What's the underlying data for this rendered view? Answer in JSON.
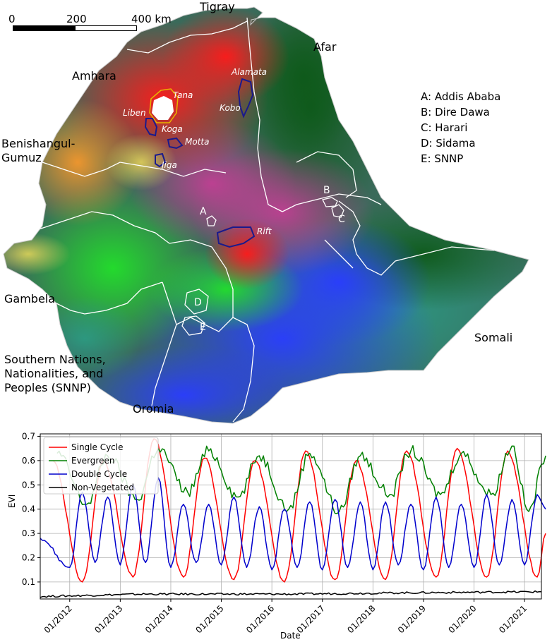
{
  "map": {
    "scale_bar": {
      "labels": [
        "0",
        "200",
        "400 km"
      ]
    },
    "regions": {
      "tigray": "Tigray",
      "afar": "Afar",
      "amhara": "Amhara",
      "benishangul": [
        "Benishangul-",
        "Gumuz"
      ],
      "gambela": "Gambela",
      "snnp": [
        "Southern Nations,",
        "Nationalities, and",
        "Peoples (SNNP)"
      ],
      "oromia": "Oromia",
      "somali": "Somali"
    },
    "letters": {
      "a": "A",
      "b": "B",
      "c": "C",
      "d": "D",
      "e": "E"
    },
    "sites": {
      "alamata": "Alamata",
      "kobo": "Kobo",
      "tana": "Tana",
      "liben": "Liben",
      "koga": "Koga",
      "motta": "Motta",
      "jiga": "Jiga",
      "rift": "Rift"
    },
    "key": [
      "A: Addis Ababa",
      "B: Dire Dawa",
      "C: Harari",
      "D: Sidama",
      "E: SNNP"
    ],
    "colors": {
      "boundary": "#ffffff",
      "site_outline": "#1a1a8c",
      "lake": "#ffffff",
      "tana_outline": "#e8b400"
    }
  },
  "chart_data": {
    "type": "line",
    "xlabel": "Date",
    "ylabel": "EVI",
    "ylim": [
      0.03,
      0.71
    ],
    "x_start": "2011-06",
    "x_end": "2021-05",
    "x_ticks": [
      "01/2012",
      "01/2013",
      "01/2014",
      "01/2015",
      "01/2016",
      "01/2017",
      "01/2018",
      "01/2019",
      "01/2020",
      "01/2021"
    ],
    "y_ticks": [
      "0.1",
      "0.2",
      "0.3",
      "0.4",
      "0.5",
      "0.6",
      "0.7"
    ],
    "grid": true,
    "legend_position": "top-left",
    "series": [
      {
        "name": "Single Cycle",
        "color": "#ff0000",
        "peaks": [
          [
            "2011-09",
            0.6
          ],
          [
            "2012-09",
            0.6
          ],
          [
            "2013-09",
            0.69
          ],
          [
            "2014-09",
            0.61
          ],
          [
            "2015-09",
            0.6
          ],
          [
            "2016-09",
            0.64
          ],
          [
            "2017-09",
            0.6
          ],
          [
            "2018-09",
            0.64
          ],
          [
            "2019-09",
            0.65
          ],
          [
            "2020-09",
            0.64
          ]
        ],
        "troughs": [
          [
            "2012-04",
            0.1
          ],
          [
            "2013-04",
            0.12
          ],
          [
            "2014-04",
            0.12
          ],
          [
            "2015-04",
            0.11
          ],
          [
            "2016-04",
            0.1
          ],
          [
            "2017-04",
            0.11
          ],
          [
            "2018-04",
            0.11
          ],
          [
            "2019-04",
            0.12
          ],
          [
            "2020-04",
            0.12
          ],
          [
            "2021-04",
            0.12
          ]
        ],
        "end": [
          "2021-06",
          0.3
        ]
      },
      {
        "name": "Evergreen",
        "color": "#008000",
        "peaks": [
          [
            "2011-10",
            0.63
          ],
          [
            "2012-10",
            0.62
          ],
          [
            "2013-10",
            0.65
          ],
          [
            "2014-10",
            0.64
          ],
          [
            "2015-10",
            0.62
          ],
          [
            "2016-10",
            0.63
          ],
          [
            "2017-10",
            0.62
          ],
          [
            "2018-10",
            0.64
          ],
          [
            "2019-10",
            0.63
          ],
          [
            "2020-10",
            0.66
          ]
        ],
        "troughs": [
          [
            "2012-05",
            0.42
          ],
          [
            "2013-05",
            0.44
          ],
          [
            "2014-05",
            0.47
          ],
          [
            "2015-05",
            0.45
          ],
          [
            "2016-05",
            0.4
          ],
          [
            "2017-05",
            0.39
          ],
          [
            "2018-05",
            0.46
          ],
          [
            "2019-05",
            0.46
          ],
          [
            "2020-05",
            0.46
          ],
          [
            "2021-02",
            0.39
          ]
        ],
        "end": [
          "2021-06",
          0.62
        ]
      },
      {
        "name": "Double Cycle",
        "color": "#0000cc",
        "peaks": [
          [
            "2012-04",
            0.47
          ],
          [
            "2012-10",
            0.45
          ],
          [
            "2013-04",
            0.5
          ],
          [
            "2013-10",
            0.53
          ],
          [
            "2014-04",
            0.42
          ],
          [
            "2014-10",
            0.42
          ],
          [
            "2015-04",
            0.45
          ],
          [
            "2015-10",
            0.41
          ],
          [
            "2016-04",
            0.4
          ],
          [
            "2016-10",
            0.43
          ],
          [
            "2017-04",
            0.44
          ],
          [
            "2017-10",
            0.43
          ],
          [
            "2018-04",
            0.43
          ],
          [
            "2018-10",
            0.42
          ],
          [
            "2019-04",
            0.45
          ],
          [
            "2019-10",
            0.42
          ],
          [
            "2020-04",
            0.46
          ],
          [
            "2020-10",
            0.44
          ],
          [
            "2021-04",
            0.46
          ]
        ],
        "troughs": [
          [
            "2012-01",
            0.16
          ],
          [
            "2012-07",
            0.18
          ],
          [
            "2013-01",
            0.17
          ],
          [
            "2013-07",
            0.18
          ],
          [
            "2014-01",
            0.16
          ],
          [
            "2014-07",
            0.18
          ],
          [
            "2015-01",
            0.17
          ],
          [
            "2015-07",
            0.16
          ],
          [
            "2016-01",
            0.15
          ],
          [
            "2016-07",
            0.16
          ],
          [
            "2017-01",
            0.15
          ],
          [
            "2017-07",
            0.16
          ],
          [
            "2018-01",
            0.15
          ],
          [
            "2018-07",
            0.17
          ],
          [
            "2019-01",
            0.15
          ],
          [
            "2019-07",
            0.16
          ],
          [
            "2020-01",
            0.16
          ],
          [
            "2020-07",
            0.17
          ],
          [
            "2021-01",
            0.17
          ]
        ],
        "start": [
          "2011-06",
          0.28
        ],
        "end": [
          "2021-06",
          0.4
        ]
      },
      {
        "name": "Non-Vegetated",
        "color": "#000000",
        "level": [
          [
            "2011-06",
            0.04
          ],
          [
            "2013-06",
            0.05
          ],
          [
            "2016-06",
            0.05
          ],
          [
            "2018-06",
            0.055
          ],
          [
            "2021-06",
            0.06
          ]
        ]
      }
    ]
  }
}
